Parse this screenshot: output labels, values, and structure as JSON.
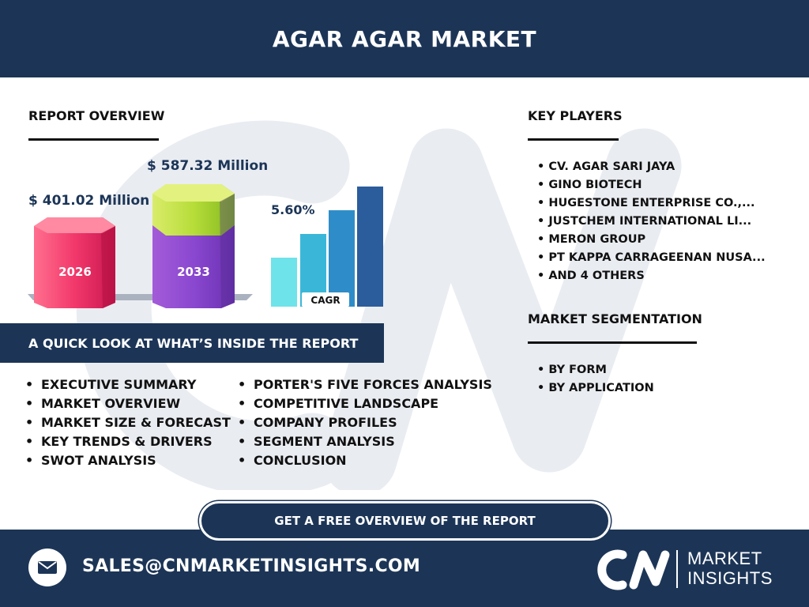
{
  "title": "AGAR AGAR MARKET",
  "report_overview": {
    "heading": "REPORT OVERVIEW",
    "value_2026": "$ 401.02 Million",
    "value_2033": "$ 587.32 Million",
    "year_start": "2026",
    "year_end": "2033",
    "cagr_value": "5.60%",
    "cagr_label": "CAGR"
  },
  "chart_data": [
    {
      "type": "bar",
      "categories": [
        "2026",
        "2033"
      ],
      "values": [
        401.02,
        587.32
      ],
      "ylabel": ""
    },
    {
      "type": "bar",
      "title": "CAGR",
      "values": [
        1,
        2,
        3,
        4
      ]
    }
  ],
  "colors": {
    "navy": "#1c3557",
    "pink": "#f2386b",
    "purple": "#8a48d0",
    "lime": "#b7dd39",
    "cyan1": "#6ee3ea",
    "cyan2": "#3ab7d8",
    "blue1": "#2e8dc8",
    "blue2": "#2b5c9c"
  },
  "quick_look": {
    "heading": "A QUICK LOOK AT WHAT’S INSIDE THE REPORT",
    "col1": [
      "EXECUTIVE SUMMARY",
      "MARKET OVERVIEW",
      "MARKET SIZE & FORECAST",
      "KEY TRENDS & DRIVERS",
      "SWOT ANALYSIS"
    ],
    "col2": [
      "PORTER'S FIVE FORCES ANALYSIS",
      "COMPETITIVE LANDSCAPE",
      "COMPANY PROFILES",
      "SEGMENT ANALYSIS",
      "CONCLUSION"
    ]
  },
  "key_players": {
    "heading": "KEY PLAYERS",
    "items": [
      "CV. AGAR SARI JAYA",
      "GINO BIOTECH",
      "HUGESTONE ENTERPRISE CO.,...",
      "JUSTCHEM INTERNATIONAL LI...",
      "MERON GROUP",
      "PT KAPPA CARRAGEENAN NUSA...",
      "AND 4 OTHERS"
    ]
  },
  "segmentation": {
    "heading": "MARKET SEGMENTATION",
    "items": [
      "BY FORM",
      "BY APPLICATION"
    ]
  },
  "cta_label": "GET A FREE OVERVIEW OF THE REPORT",
  "footer": {
    "email": "SALES@CNMARKETINSIGHTS.COM",
    "logo_line1": "MARKET",
    "logo_line2": "INSIGHTS",
    "icons": [
      "mail-icon",
      "cn-logo-icon"
    ]
  }
}
